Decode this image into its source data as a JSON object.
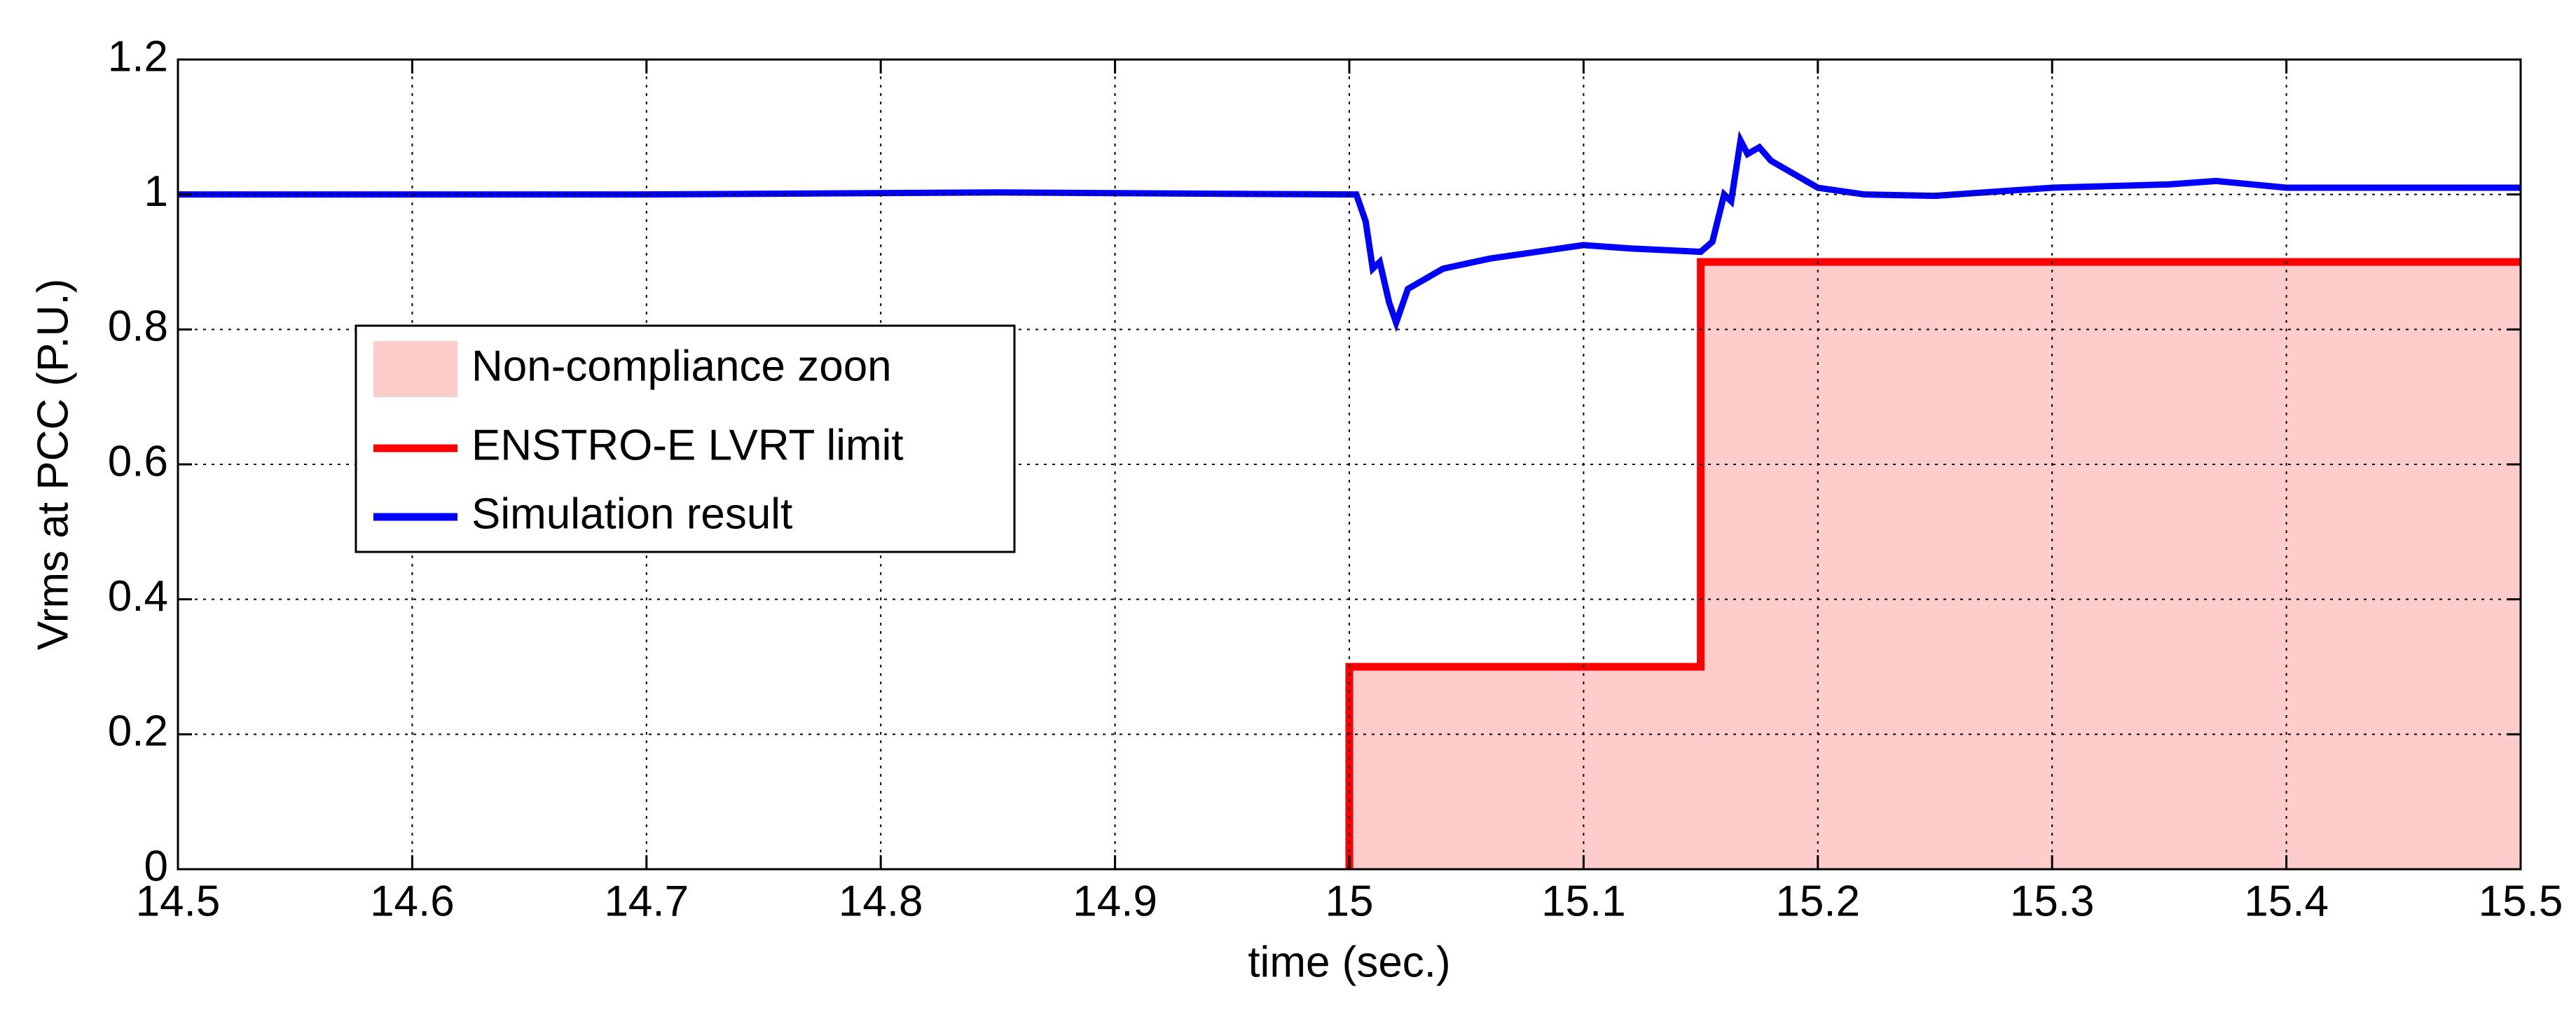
{
  "chart_data": {
    "type": "line",
    "xlabel": "time (sec.)",
    "ylabel": "Vrms at PCC (P.U.)",
    "xlim": [
      14.5,
      15.5
    ],
    "ylim": [
      0,
      1.2
    ],
    "xticks": [
      14.5,
      14.6,
      14.7,
      14.8,
      14.9,
      15,
      15.1,
      15.2,
      15.3,
      15.4,
      15.5
    ],
    "yticks": [
      0,
      0.2,
      0.4,
      0.6,
      0.8,
      1,
      1.2
    ],
    "grid": true,
    "legend": "middle left",
    "series": [
      {
        "name": "Non-compliance zoon",
        "type": "area",
        "color": "#ffcccc",
        "x": [
          15,
          15,
          15.15,
          15.15,
          15.5
        ],
        "values": [
          0,
          0.3,
          0.3,
          0.9,
          0.9
        ]
      },
      {
        "name": "ENSTRO-E LVRT limit",
        "type": "line",
        "color": "#ff0000",
        "x": [
          15,
          15,
          15.15,
          15.15,
          15.5
        ],
        "values": [
          0,
          0.3,
          0.3,
          0.9,
          0.9
        ]
      },
      {
        "name": "Simulation result",
        "type": "line",
        "color": "#0000ff",
        "x": [
          14.5,
          14.7,
          14.85,
          15,
          15.003,
          15.007,
          15.01,
          15.013,
          15.017,
          15.02,
          15.025,
          15.03,
          15.04,
          15.06,
          15.08,
          15.1,
          15.12,
          15.15,
          15.155,
          15.16,
          15.163,
          15.167,
          15.17,
          15.175,
          15.18,
          15.19,
          15.2,
          15.22,
          15.25,
          15.3,
          15.35,
          15.37,
          15.4,
          15.45,
          15.5
        ],
        "values": [
          1.0,
          1.0,
          1.003,
          1.0,
          1.0,
          0.96,
          0.89,
          0.9,
          0.84,
          0.81,
          0.86,
          0.87,
          0.89,
          0.905,
          0.915,
          0.925,
          0.92,
          0.915,
          0.93,
          1.0,
          0.99,
          1.08,
          1.06,
          1.07,
          1.05,
          1.03,
          1.01,
          1.0,
          0.998,
          1.01,
          1.015,
          1.02,
          1.01,
          1.01,
          1.01
        ]
      }
    ]
  }
}
